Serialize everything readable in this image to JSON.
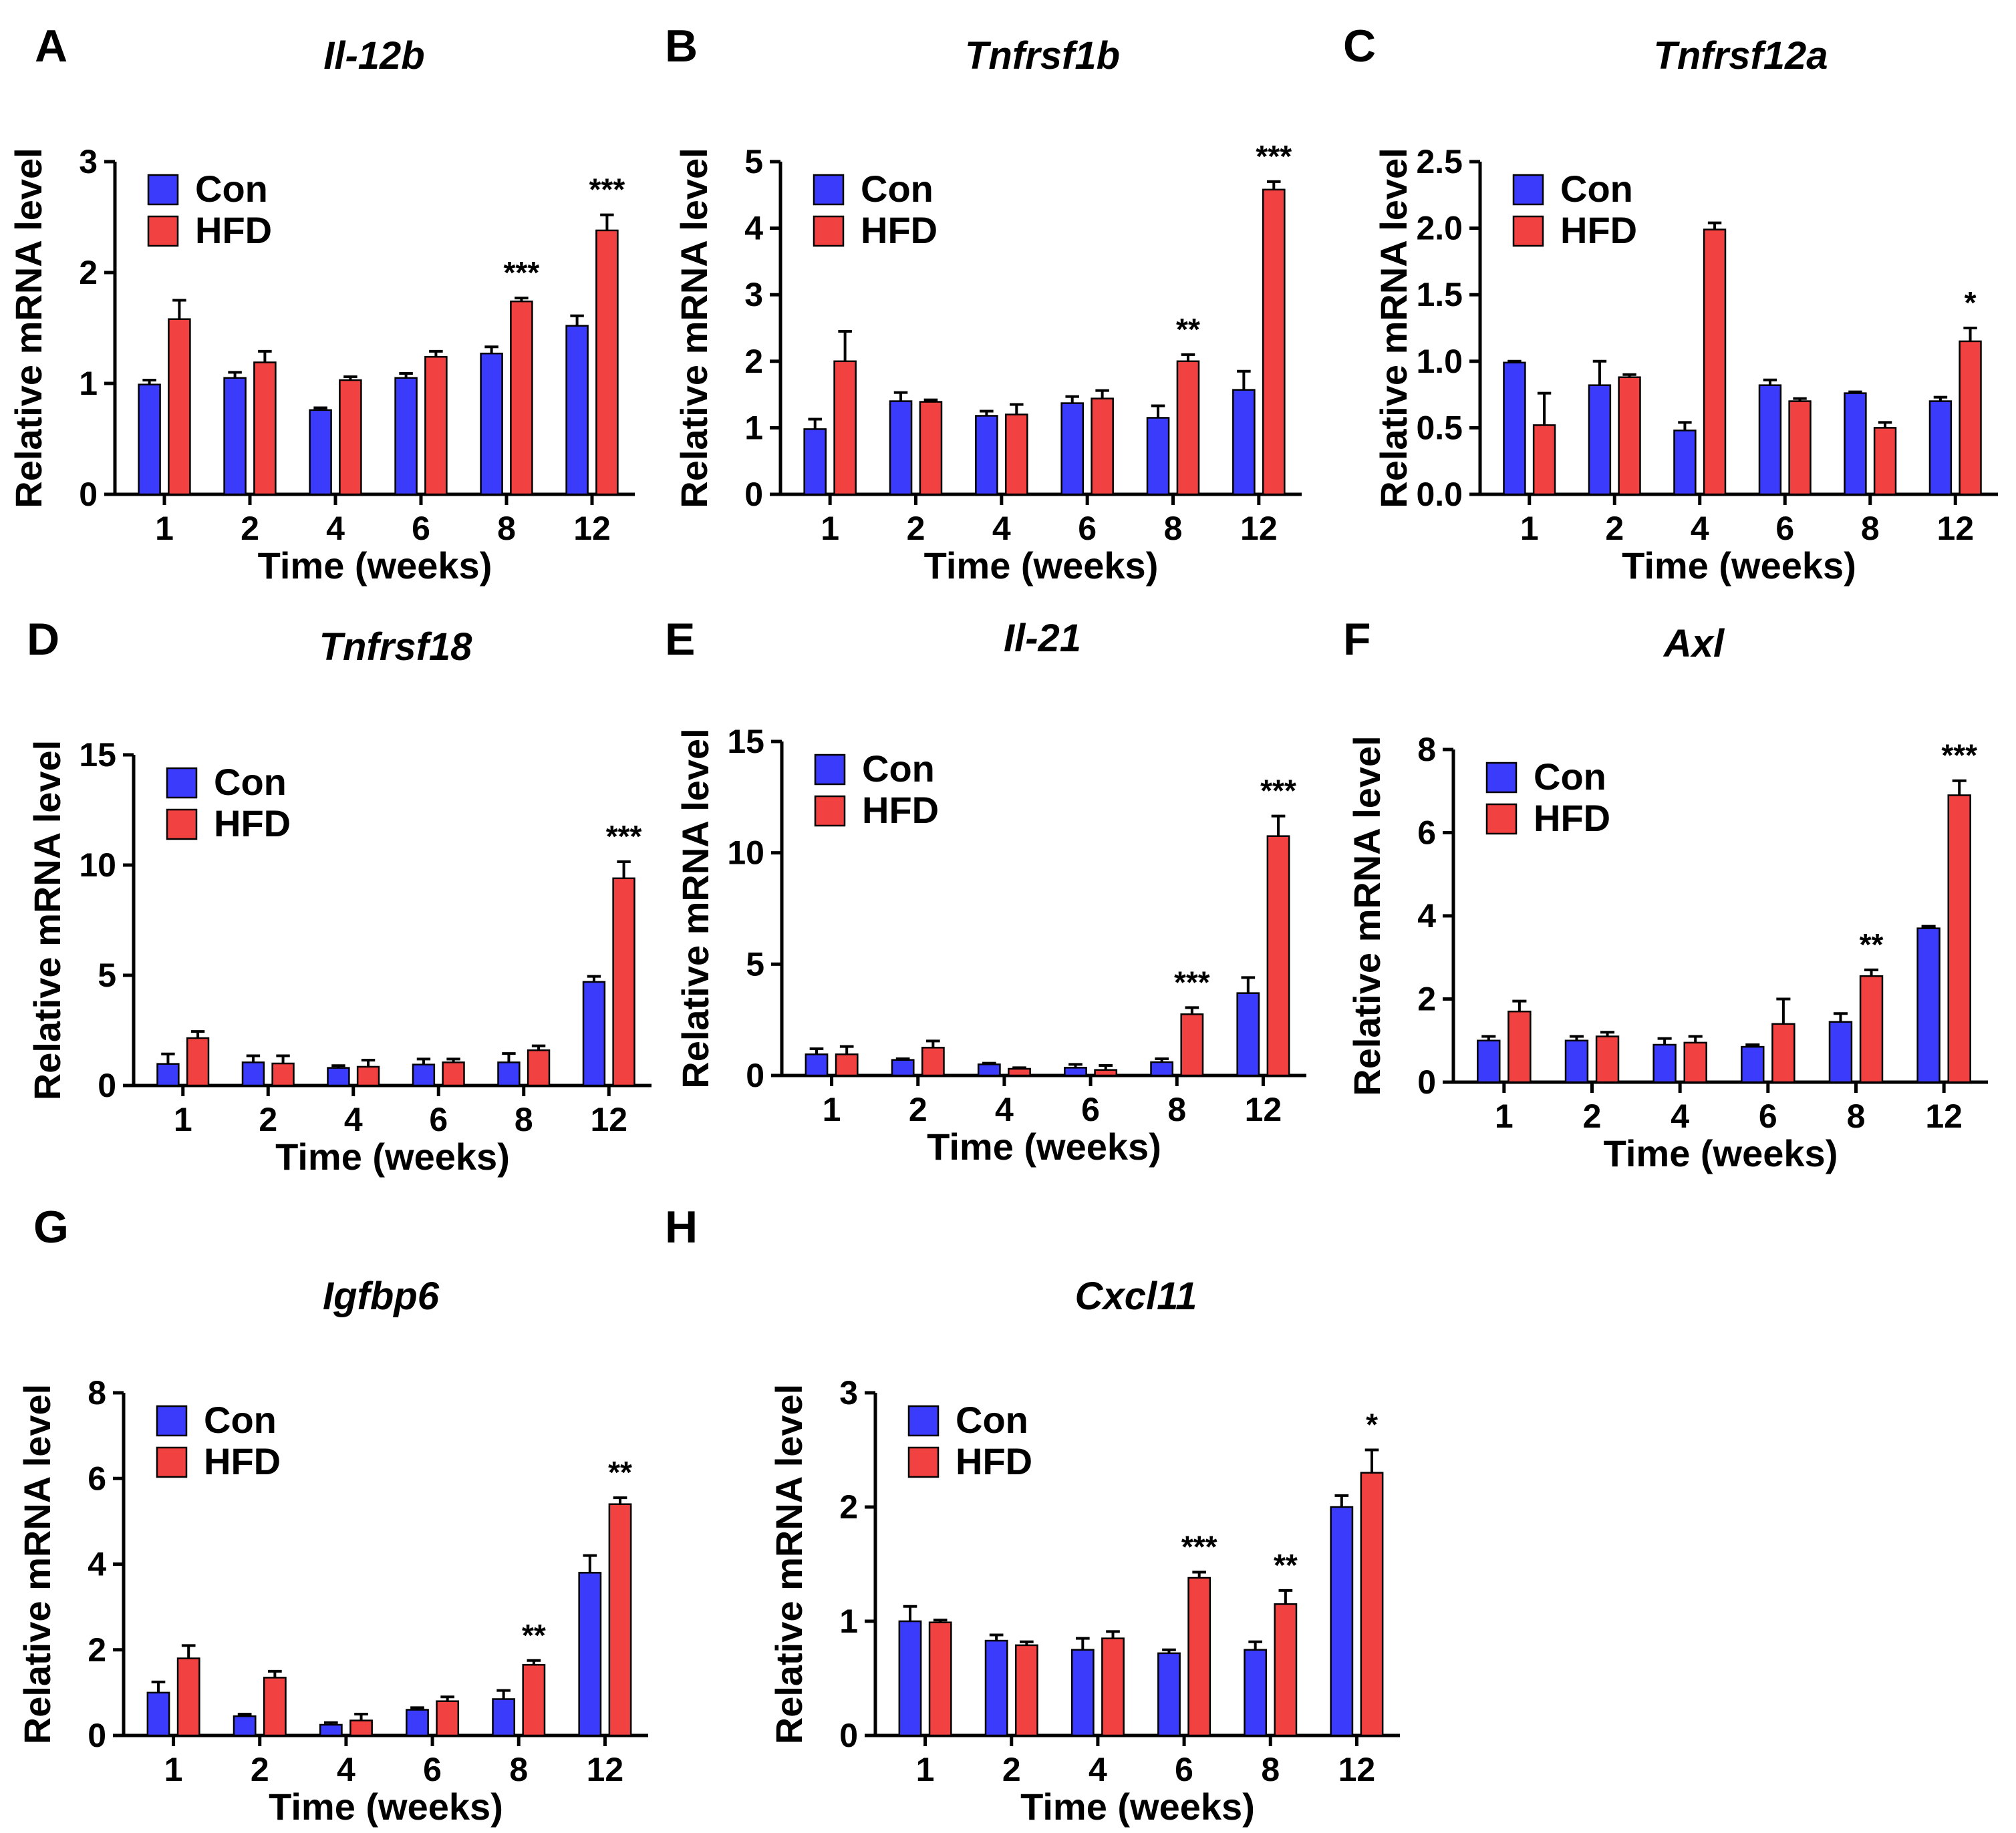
{
  "colors": {
    "con": "#3b3bfb",
    "hfd": "#f24141",
    "axis": "#000000"
  },
  "chart_data": [
    {
      "panel": "A",
      "type": "bar",
      "title": "Il-12b",
      "xlabel": "Time (weeks)",
      "ylabel": "Relative mRNA level",
      "categories": [
        "1",
        "2",
        "4",
        "6",
        "8",
        "12"
      ],
      "ylim": [
        0,
        3
      ],
      "yticks": [
        0,
        1,
        2,
        3
      ],
      "ytick_labels": [
        "0",
        "1",
        "2",
        "3"
      ],
      "legend": [
        "Con",
        "HFD"
      ],
      "series": [
        {
          "name": "Con",
          "values": [
            0.99,
            1.05,
            0.76,
            1.05,
            1.27,
            1.52
          ],
          "errors": [
            0.04,
            0.05,
            0.02,
            0.04,
            0.06,
            0.09
          ]
        },
        {
          "name": "HFD",
          "values": [
            1.58,
            1.19,
            1.03,
            1.24,
            1.74,
            2.38
          ],
          "errors": [
            0.17,
            0.1,
            0.03,
            0.05,
            0.03,
            0.14
          ]
        }
      ],
      "significance": [
        "",
        "",
        "",
        "",
        "***",
        "***"
      ]
    },
    {
      "panel": "B",
      "type": "bar",
      "title": "Tnfrsf1b",
      "xlabel": "Time (weeks)",
      "ylabel": "Relative mRNA level",
      "categories": [
        "1",
        "2",
        "4",
        "6",
        "8",
        "12"
      ],
      "ylim": [
        0,
        5
      ],
      "yticks": [
        0,
        1,
        2,
        3,
        4,
        5
      ],
      "ytick_labels": [
        "0",
        "1",
        "2",
        "3",
        "4",
        "5"
      ],
      "legend": [
        "Con",
        "HFD"
      ],
      "series": [
        {
          "name": "Con",
          "values": [
            0.98,
            1.4,
            1.18,
            1.37,
            1.15,
            1.57
          ],
          "errors": [
            0.15,
            0.13,
            0.07,
            0.1,
            0.18,
            0.28
          ]
        },
        {
          "name": "HFD",
          "values": [
            2.0,
            1.39,
            1.2,
            1.44,
            2.0,
            4.58
          ],
          "errors": [
            0.45,
            0.03,
            0.15,
            0.12,
            0.1,
            0.12
          ]
        }
      ],
      "significance": [
        "",
        "",
        "",
        "",
        "**",
        "***"
      ]
    },
    {
      "panel": "C",
      "type": "bar",
      "title": "Tnfrsf12a",
      "xlabel": "Time (weeks)",
      "ylabel": "Relative mRNA level",
      "categories": [
        "1",
        "2",
        "4",
        "6",
        "8",
        "12"
      ],
      "ylim": [
        0,
        2.5
      ],
      "yticks": [
        0,
        0.5,
        1.0,
        1.5,
        2.0,
        2.5
      ],
      "ytick_labels": [
        "0.0",
        "0.5",
        "1.0",
        "1.5",
        "2.0",
        "2.5"
      ],
      "legend": [
        "Con",
        "HFD"
      ],
      "series": [
        {
          "name": "Con",
          "values": [
            0.99,
            0.82,
            0.48,
            0.82,
            0.76,
            0.7
          ],
          "errors": [
            0.01,
            0.18,
            0.06,
            0.04,
            0.01,
            0.03
          ]
        },
        {
          "name": "HFD",
          "values": [
            0.52,
            0.88,
            1.99,
            0.7,
            0.5,
            1.15
          ],
          "errors": [
            0.24,
            0.02,
            0.05,
            0.02,
            0.04,
            0.1
          ]
        }
      ],
      "significance": [
        "",
        "",
        "",
        "",
        "",
        "*"
      ]
    },
    {
      "panel": "D",
      "type": "bar",
      "title": "Tnfrsf18",
      "xlabel": "Time (weeks)",
      "ylabel": "Relative mRNA level",
      "categories": [
        "1",
        "2",
        "4",
        "6",
        "8",
        "12"
      ],
      "ylim": [
        0,
        15
      ],
      "yticks": [
        0,
        5,
        10,
        15
      ],
      "ytick_labels": [
        "0",
        "5",
        "10",
        "15"
      ],
      "legend": [
        "Con",
        "HFD"
      ],
      "series": [
        {
          "name": "Con",
          "values": [
            0.98,
            1.05,
            0.8,
            0.95,
            1.05,
            4.7
          ],
          "errors": [
            0.45,
            0.3,
            0.1,
            0.25,
            0.4,
            0.25
          ]
        },
        {
          "name": "HFD",
          "values": [
            2.15,
            1.0,
            0.85,
            1.05,
            1.6,
            9.4
          ],
          "errors": [
            0.3,
            0.35,
            0.3,
            0.15,
            0.2,
            0.75
          ]
        }
      ],
      "significance": [
        "",
        "",
        "",
        "",
        "",
        "***"
      ]
    },
    {
      "panel": "E",
      "type": "bar",
      "title": "Il-21",
      "xlabel": "Time (weeks)",
      "ylabel": "Relative mRNA level",
      "categories": [
        "1",
        "2",
        "4",
        "6",
        "8",
        "12"
      ],
      "ylim": [
        0,
        15
      ],
      "yticks": [
        0,
        5,
        10,
        15
      ],
      "ytick_labels": [
        "0",
        "5",
        "10",
        "15"
      ],
      "legend": [
        "Con",
        "HFD"
      ],
      "series": [
        {
          "name": "Con",
          "values": [
            0.95,
            0.7,
            0.5,
            0.35,
            0.6,
            3.7
          ],
          "errors": [
            0.25,
            0.05,
            0.05,
            0.15,
            0.15,
            0.7
          ]
        },
        {
          "name": "HFD",
          "values": [
            0.95,
            1.25,
            0.3,
            0.25,
            2.75,
            10.75
          ],
          "errors": [
            0.35,
            0.3,
            0.05,
            0.2,
            0.3,
            0.9
          ]
        }
      ],
      "significance": [
        "",
        "",
        "",
        "",
        "***",
        "***"
      ]
    },
    {
      "panel": "F",
      "type": "bar",
      "title": "Axl",
      "xlabel": "Time (weeks)",
      "ylabel": "Relative mRNA level",
      "categories": [
        "1",
        "2",
        "4",
        "6",
        "8",
        "12"
      ],
      "ylim": [
        0,
        8
      ],
      "yticks": [
        0,
        2,
        4,
        6,
        8
      ],
      "ytick_labels": [
        "0",
        "2",
        "4",
        "6",
        "8"
      ],
      "legend": [
        "Con",
        "HFD"
      ],
      "series": [
        {
          "name": "Con",
          "values": [
            1.0,
            1.0,
            0.9,
            0.85,
            1.45,
            3.7
          ],
          "errors": [
            0.1,
            0.1,
            0.15,
            0.05,
            0.2,
            0.05
          ]
        },
        {
          "name": "HFD",
          "values": [
            1.7,
            1.1,
            0.95,
            1.4,
            2.55,
            6.9
          ],
          "errors": [
            0.25,
            0.1,
            0.15,
            0.6,
            0.15,
            0.35
          ]
        }
      ],
      "significance": [
        "",
        "",
        "",
        "",
        "**",
        "***"
      ]
    },
    {
      "panel": "G",
      "type": "bar",
      "title": "Igfbp6",
      "xlabel": "Time (weeks)",
      "ylabel": "Relative mRNA level",
      "categories": [
        "1",
        "2",
        "4",
        "6",
        "8",
        "12"
      ],
      "ylim": [
        0,
        8
      ],
      "yticks": [
        0,
        2,
        4,
        6,
        8
      ],
      "ytick_labels": [
        "0",
        "2",
        "4",
        "6",
        "8"
      ],
      "legend": [
        "Con",
        "HFD"
      ],
      "series": [
        {
          "name": "Con",
          "values": [
            1.0,
            0.45,
            0.25,
            0.6,
            0.85,
            3.8
          ],
          "errors": [
            0.25,
            0.05,
            0.05,
            0.05,
            0.2,
            0.4
          ]
        },
        {
          "name": "HFD",
          "values": [
            1.8,
            1.35,
            0.35,
            0.8,
            1.65,
            5.4
          ],
          "errors": [
            0.3,
            0.15,
            0.15,
            0.1,
            0.1,
            0.15
          ]
        }
      ],
      "significance": [
        "",
        "",
        "",
        "",
        "**",
        "**"
      ]
    },
    {
      "panel": "H",
      "type": "bar",
      "title": "Cxcl11",
      "xlabel": "Time (weeks)",
      "ylabel": "Relative mRNA level",
      "categories": [
        "1",
        "2",
        "4",
        "6",
        "8",
        "12"
      ],
      "ylim": [
        0,
        3
      ],
      "yticks": [
        0,
        1,
        2,
        3
      ],
      "ytick_labels": [
        "0",
        "1",
        "2",
        "3"
      ],
      "legend": [
        "Con",
        "HFD"
      ],
      "series": [
        {
          "name": "Con",
          "values": [
            1.0,
            0.83,
            0.75,
            0.72,
            0.75,
            2.0
          ],
          "errors": [
            0.13,
            0.05,
            0.1,
            0.03,
            0.07,
            0.1
          ]
        },
        {
          "name": "HFD",
          "values": [
            0.99,
            0.79,
            0.85,
            1.38,
            1.15,
            2.3
          ],
          "errors": [
            0.02,
            0.03,
            0.06,
            0.05,
            0.12,
            0.2
          ]
        }
      ],
      "significance": [
        "",
        "",
        "",
        "***",
        "**",
        "*"
      ]
    }
  ]
}
